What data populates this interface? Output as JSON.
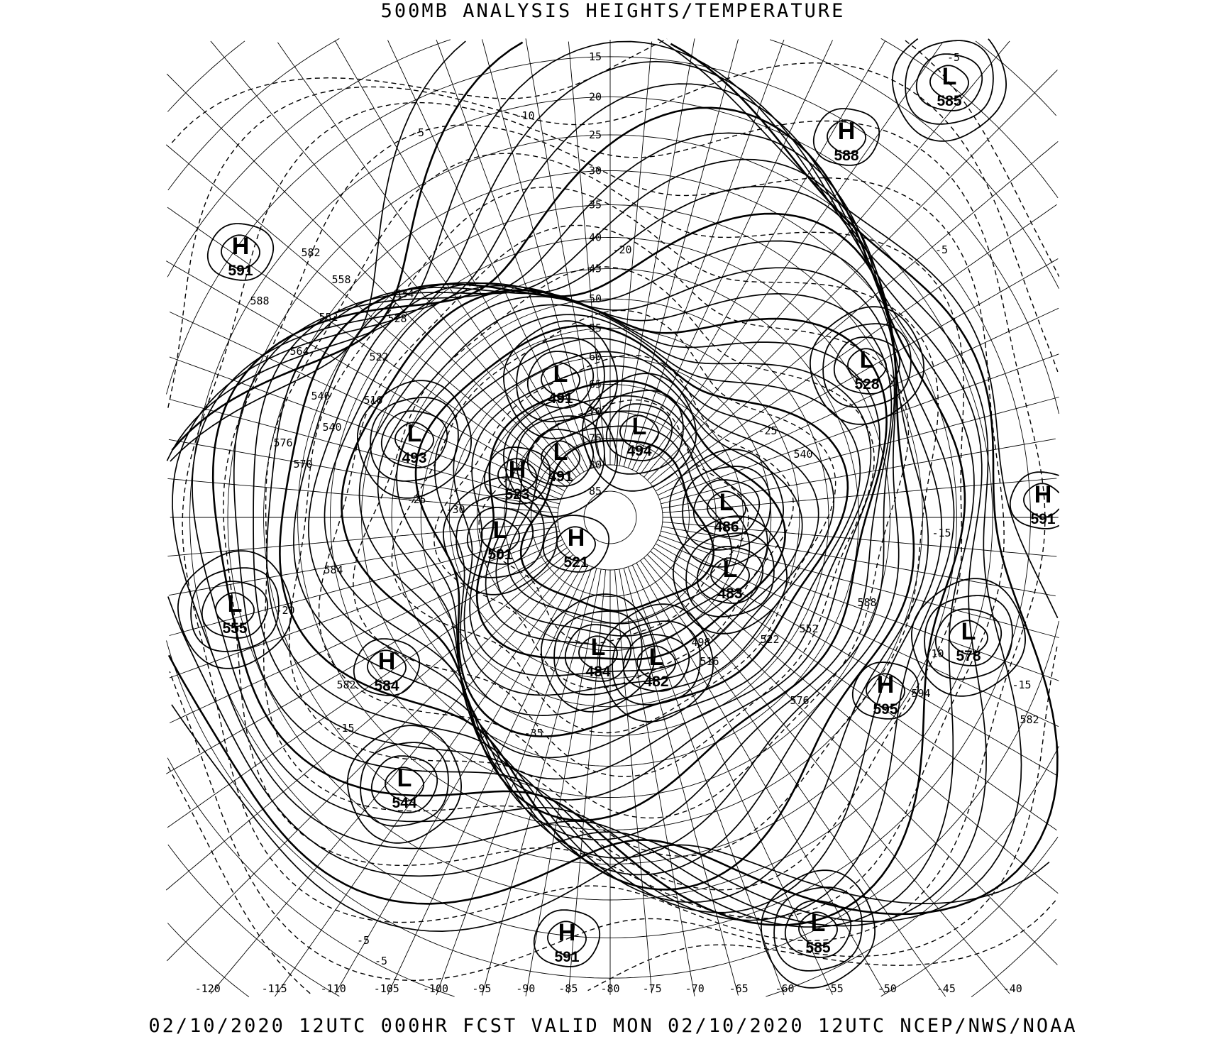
{
  "title": "500MB ANALYSIS  HEIGHTS/TEMPERATURE",
  "footer": "02/10/2020 12UTC 000HR FCST VALID MON 02/10/2020 12UTC  NCEP/NWS/NOAA",
  "systems": [
    {
      "type": "L",
      "value": "585"
    },
    {
      "type": "H",
      "value": "588"
    },
    {
      "type": "H",
      "value": "591"
    },
    {
      "type": "L",
      "value": "528"
    },
    {
      "type": "L",
      "value": "491"
    },
    {
      "type": "L",
      "value": "494"
    },
    {
      "type": "L",
      "value": "493"
    },
    {
      "type": "H",
      "value": "523"
    },
    {
      "type": "L",
      "value": "491"
    },
    {
      "type": "L",
      "value": "486"
    },
    {
      "type": "H",
      "value": "591"
    },
    {
      "type": "L",
      "value": "501"
    },
    {
      "type": "H",
      "value": "521"
    },
    {
      "type": "L",
      "value": "483"
    },
    {
      "type": "L",
      "value": "555"
    },
    {
      "type": "L",
      "value": "578"
    },
    {
      "type": "L",
      "value": "484"
    },
    {
      "type": "L",
      "value": "482"
    },
    {
      "type": "H",
      "value": "584"
    },
    {
      "type": "H",
      "value": "595"
    },
    {
      "type": "L",
      "value": "544"
    },
    {
      "type": "H",
      "value": "591"
    },
    {
      "type": "L",
      "value": "585"
    }
  ],
  "latitude_labels": [
    "15",
    "20",
    "25",
    "30",
    "35",
    "40",
    "45",
    "50",
    "55",
    "60",
    "65",
    "70",
    "75",
    "80",
    "85"
  ],
  "longitude_labels": [
    "-120",
    "-115",
    "-110",
    "-105",
    "-100",
    "-95",
    "-90",
    "-85",
    "-80",
    "-75",
    "-70",
    "-65",
    "-60",
    "-55",
    "-50",
    "-45",
    "-40"
  ],
  "height_contour_labels": [
    "582",
    "588",
    "558",
    "534",
    "552",
    "528",
    "564",
    "522",
    "546",
    "510",
    "540",
    "576",
    "570",
    "584",
    "582",
    "540",
    "588",
    "552",
    "594",
    "582",
    "576",
    "522",
    "516",
    "498"
  ],
  "temperature_contour_labels": [
    "-5",
    "-10",
    "-5",
    "-20",
    "-5",
    "-15",
    "-10",
    "-15",
    "-20",
    "-15",
    "-25",
    "-30",
    "-35",
    "-5",
    "-5",
    "-25"
  ]
}
